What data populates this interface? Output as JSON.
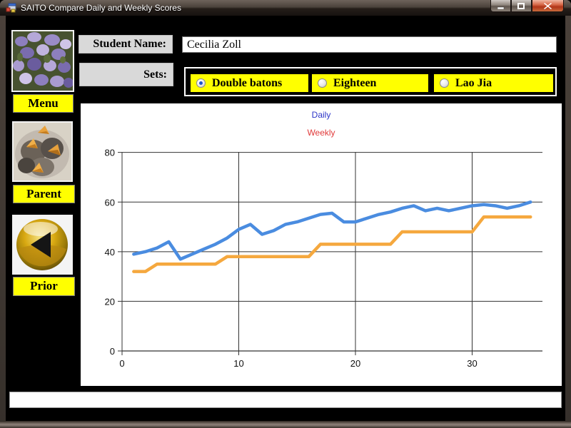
{
  "window": {
    "title": "SAITO Compare Daily and Weekly Scores",
    "controls": {
      "minimize": "—",
      "maximize": "❐",
      "close": "✕"
    }
  },
  "sidebar": {
    "buttons": [
      {
        "id": "menu",
        "label": "Menu",
        "image": "wisteria-flowers"
      },
      {
        "id": "parent",
        "label": "Parent",
        "image": "baby-birds-in-nest"
      },
      {
        "id": "prior",
        "label": "Prior",
        "image": "gold-orb-back-arrow"
      }
    ]
  },
  "form": {
    "student_name_label": "Student Name:",
    "student_name_value": "Cecilia Zoll",
    "sets_label": "Sets:",
    "sets_options": [
      {
        "label": "Double batons",
        "selected": true
      },
      {
        "label": "Eighteen",
        "selected": false
      },
      {
        "label": "Lao Jia",
        "selected": false
      }
    ]
  },
  "footer": {
    "message_value": ""
  },
  "colors": {
    "panel_yellow": "#ffff00",
    "daily_line": "#4a8ce0",
    "weekly_line": "#f5a83e",
    "legend_daily_text": "#2d35c8",
    "legend_weekly_text": "#e03a3a",
    "grid": "#333333"
  },
  "chart_data": {
    "type": "line",
    "title": "",
    "xlabel": "",
    "ylabel": "",
    "xlim": [
      0,
      36
    ],
    "ylim": [
      0,
      80
    ],
    "xticks": [
      0,
      10,
      20,
      30
    ],
    "yticks": [
      0,
      20,
      40,
      60,
      80
    ],
    "grid": true,
    "legend_position": "top-center",
    "legend": [
      {
        "label": "Daily",
        "text_color": "#2d35c8"
      },
      {
        "label": "Weekly",
        "text_color": "#e03a3a"
      }
    ],
    "x": [
      1,
      2,
      3,
      4,
      5,
      6,
      7,
      8,
      9,
      10,
      11,
      12,
      13,
      14,
      15,
      16,
      17,
      18,
      19,
      20,
      21,
      22,
      23,
      24,
      25,
      26,
      27,
      28,
      29,
      30,
      31,
      32,
      33,
      34,
      35
    ],
    "series": [
      {
        "name": "Daily",
        "color": "#4a8ce0",
        "values": [
          39,
          40,
          41.5,
          44,
          37,
          39,
          41,
          43,
          45.5,
          49,
          51,
          47,
          48.5,
          51,
          52,
          53.5,
          55,
          55.5,
          52,
          52,
          53.5,
          55,
          56,
          57.5,
          58.5,
          56.5,
          57.5,
          56.5,
          57.5,
          58.5,
          59,
          58.5,
          57.5,
          58.5,
          60
        ]
      },
      {
        "name": "Weekly",
        "color": "#f5a83e",
        "values": [
          32,
          32,
          35,
          35,
          35,
          35,
          35,
          35,
          38,
          38,
          38,
          38,
          38,
          38,
          38,
          38,
          43,
          43,
          43,
          43,
          43,
          43,
          43,
          48,
          48,
          48,
          48,
          48,
          48,
          48,
          54,
          54,
          54,
          54,
          54
        ]
      }
    ]
  }
}
